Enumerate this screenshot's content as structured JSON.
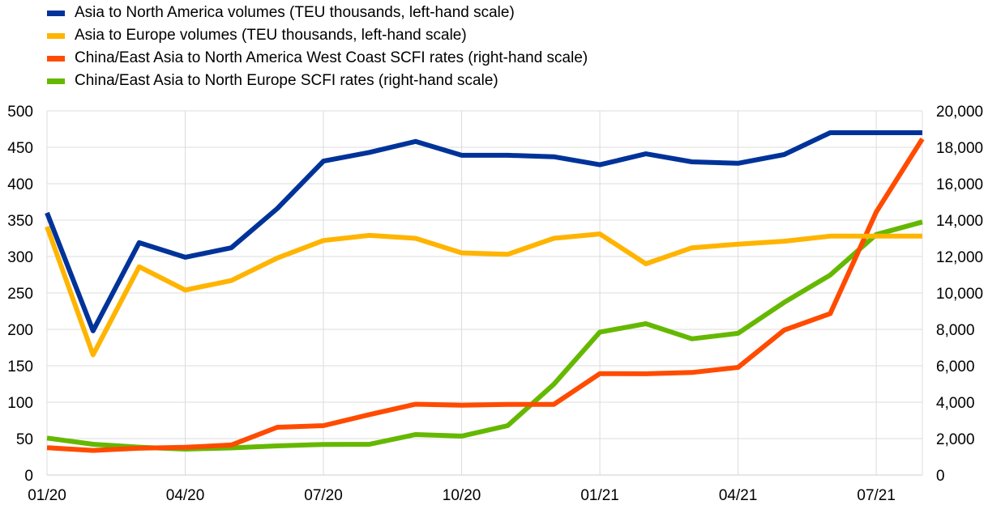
{
  "chart_data": {
    "type": "line",
    "x": [
      "01/20",
      "02/20",
      "03/20",
      "04/20",
      "05/20",
      "06/20",
      "07/20",
      "08/20",
      "09/20",
      "10/20",
      "11/20",
      "12/20",
      "01/21",
      "02/21",
      "03/21",
      "04/21",
      "05/21",
      "06/21",
      "07/21",
      "08/21"
    ],
    "x_tick_labels": [
      "01/20",
      "04/20",
      "07/20",
      "10/20",
      "01/21",
      "04/21",
      "07/21"
    ],
    "ylim_left": [
      0,
      500
    ],
    "yticks_left": [
      "0",
      "50",
      "100",
      "150",
      "200",
      "250",
      "300",
      "350",
      "400",
      "450",
      "500"
    ],
    "ylim_right": [
      0,
      20000
    ],
    "yticks_right": [
      "0",
      "2,000",
      "4,000",
      "6,000",
      "8,000",
      "10,000",
      "12,000",
      "14,000",
      "16,000",
      "18,000",
      "20,000"
    ],
    "grid": "vertical and horizontal",
    "legend_position": "top-left",
    "series": [
      {
        "name": "Asia to North America volumes (TEU thousands, left-hand scale)",
        "axis": "left",
        "color": "#003399",
        "values": [
          360,
          198,
          319,
          299,
          312,
          366,
          431,
          443,
          458,
          439,
          439,
          437,
          426,
          441,
          430,
          428,
          440,
          470,
          470,
          470
        ]
      },
      {
        "name": "Asia to Europe volumes (TEU thousands, left-hand scale)",
        "axis": "left",
        "color": "#FFB400",
        "values": [
          341,
          165,
          286,
          254,
          267,
          298,
          322,
          329,
          325,
          305,
          303,
          325,
          331,
          290,
          312,
          317,
          321,
          328,
          328,
          328
        ]
      },
      {
        "name": "China/East Asia to North America West Coast SCFI rates (right-hand scale)",
        "axis": "right",
        "color": "#FF4B00",
        "values": [
          1500,
          1350,
          1470,
          1520,
          1650,
          2620,
          2710,
          3320,
          3890,
          3830,
          3880,
          3880,
          5570,
          5560,
          5630,
          5910,
          7960,
          8860,
          14450,
          18460
        ]
      },
      {
        "name": "China/East Asia to North Europe SCFI rates (right-hand scale)",
        "axis": "right",
        "color": "#65B800",
        "values": [
          2030,
          1690,
          1530,
          1420,
          1490,
          1600,
          1680,
          1690,
          2220,
          2140,
          2710,
          4980,
          7850,
          8310,
          7480,
          7780,
          9480,
          10980,
          13210,
          13900
        ]
      }
    ]
  }
}
